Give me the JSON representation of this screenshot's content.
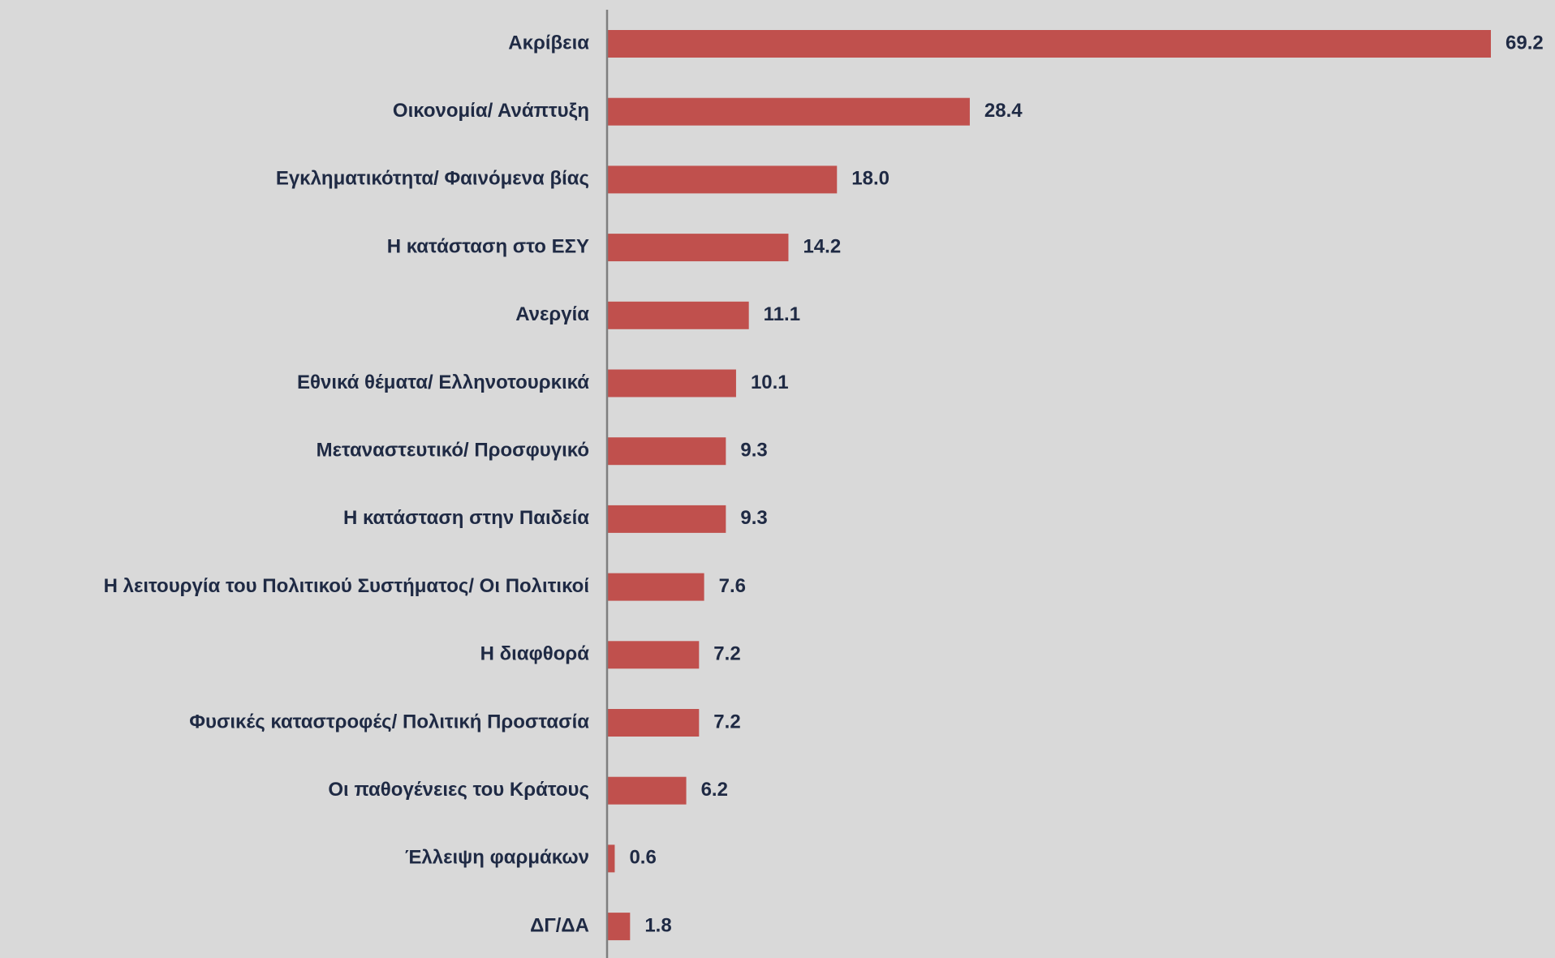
{
  "chart_data": {
    "type": "bar",
    "orientation": "horizontal",
    "categories": [
      "Ακρίβεια",
      "Οικονομία/ Ανάπτυξη",
      "Εγκληματικότητα/ Φαινόμενα βίας",
      "Η κατάσταση στο ΕΣΥ",
      "Ανεργία",
      "Εθνικά θέματα/ Ελληνοτουρκικά",
      "Μεταναστευτικό/ Προσφυγικό",
      "Η κατάσταση στην Παιδεία",
      "Η λειτουργία του Πολιτικού Συστήματος/ Οι Πολιτικοί",
      "Η διαφθορά",
      "Φυσικές καταστροφές/ Πολιτική Προστασία",
      "Οι παθογένειες του Κράτους",
      "Έλλειψη φαρμάκων",
      "ΔΓ/ΔΑ"
    ],
    "values": [
      69.2,
      28.4,
      18.0,
      14.2,
      11.1,
      10.1,
      9.3,
      9.3,
      7.6,
      7.2,
      7.2,
      6.2,
      0.6,
      1.8
    ],
    "value_labels": [
      "69.2",
      "28.4",
      "18.0",
      "14.2",
      "11.1",
      "10.1",
      "9.3",
      "9.3",
      "7.6",
      "7.2",
      "7.2",
      "6.2",
      "0.6",
      "1.8"
    ],
    "color": "#c0504d"
  }
}
